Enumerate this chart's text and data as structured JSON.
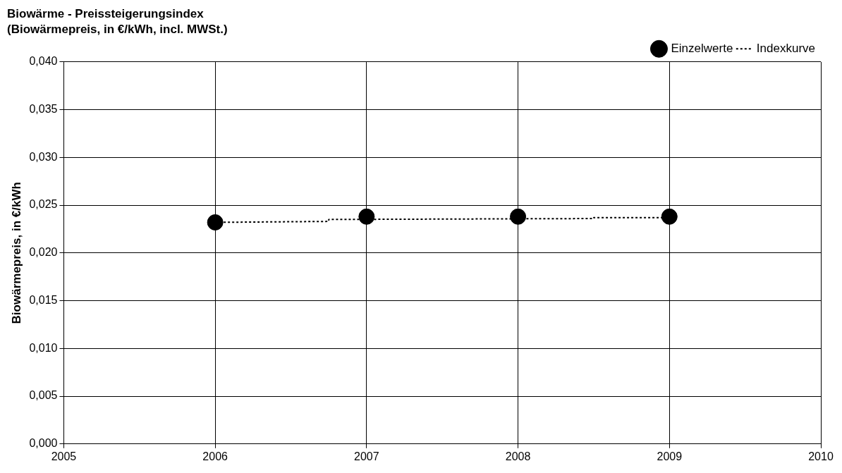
{
  "chart_data": {
    "type": "scatter",
    "title": "Biowärme - Preissteigerungsindex",
    "subtitle": "(Biowärmepreis, in €/kWh, incl. MWSt.)",
    "ylabel": "Biowärmepreis, in €/kWh",
    "x": [
      2006,
      2007,
      2008,
      2009
    ],
    "series": [
      {
        "name": "Einzelwerte",
        "color": "#000000",
        "marker": "circle",
        "values": [
          0.0232,
          0.0238,
          0.0238,
          0.0238
        ]
      },
      {
        "name": "Indexkurve",
        "type": "line",
        "color": "#000000",
        "marker": "none",
        "line_style": "dotted",
        "x": [
          2006,
          2006.75,
          2006.75,
          2008.5,
          2008.5,
          2009
        ],
        "values": [
          0.0232,
          0.0233,
          0.0235,
          0.0236,
          0.0237,
          0.0237
        ]
      }
    ],
    "xlim": [
      2005,
      2010
    ],
    "xticks": [
      2005,
      2006,
      2007,
      2008,
      2009,
      2010
    ],
    "ylim": [
      0,
      0.04
    ],
    "yticks": [
      {
        "value": 0,
        "label": "0,000"
      },
      {
        "value": 0.005,
        "label": "0,005"
      },
      {
        "value": 0.01,
        "label": "0,010"
      },
      {
        "value": 0.015,
        "label": "0,015"
      },
      {
        "value": 0.02,
        "label": "0,020"
      },
      {
        "value": 0.025,
        "label": "0,025"
      },
      {
        "value": 0.03,
        "label": "0,030"
      },
      {
        "value": 0.035,
        "label": "0,035"
      },
      {
        "value": 0.04,
        "label": "0,040"
      }
    ],
    "grid": true,
    "legend": "top right"
  }
}
